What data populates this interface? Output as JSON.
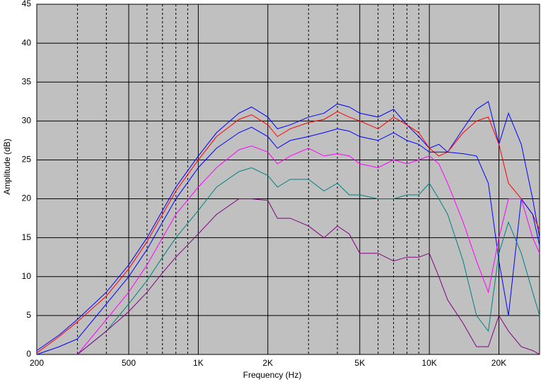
{
  "chart_data": {
    "type": "line",
    "xscale": "log",
    "grid": true,
    "xlabel": "Frequency (Hz)",
    "ylabel": "Amplitude (dB)",
    "xlim": [
      200,
      30000
    ],
    "ylim": [
      0,
      45
    ],
    "xticks": [
      200,
      500,
      {
        "value": 1000,
        "label": "1K"
      },
      {
        "value": 2000,
        "label": "2K"
      },
      {
        "value": 5000,
        "label": "5K"
      },
      {
        "value": 10000,
        "label": "10K"
      },
      {
        "value": 20000,
        "label": "20K"
      }
    ],
    "xminor": [
      300,
      400,
      600,
      700,
      800,
      900,
      3000,
      4000,
      6000,
      7000,
      8000,
      9000
    ],
    "yticks": [
      0,
      5,
      10,
      15,
      20,
      25,
      30,
      35,
      40,
      45
    ],
    "x": [
      200,
      250,
      300,
      400,
      500,
      600,
      700,
      800,
      1000,
      1200,
      1500,
      1700,
      2000,
      2200,
      2500,
      3000,
      3500,
      4000,
      4500,
      5000,
      6000,
      7000,
      8000,
      9000,
      10000,
      11000,
      12000,
      14000,
      16000,
      18000,
      20000,
      22000,
      25000,
      28000,
      30000
    ],
    "series": [
      {
        "color": "#0000ff",
        "values": [
          0.5,
          2.5,
          4.5,
          8,
          11.5,
          15,
          18.5,
          21.5,
          25.5,
          28.5,
          31,
          31.8,
          30.5,
          29,
          29.5,
          30.5,
          31,
          32.2,
          31.8,
          31,
          30.5,
          31.5,
          29.5,
          28,
          26.5,
          27,
          26,
          29,
          31.5,
          32.5,
          27,
          31,
          27,
          20,
          15
        ]
      },
      {
        "color": "#ff0000",
        "values": [
          0.2,
          2.3,
          4.2,
          7.5,
          11,
          14.5,
          18,
          21,
          25,
          28,
          30.2,
          30.8,
          29.5,
          28,
          29,
          29.8,
          30.2,
          31.2,
          30.5,
          30,
          29,
          30.5,
          29.5,
          28.5,
          26.5,
          25.5,
          26,
          28.5,
          30,
          30.5,
          27,
          22,
          20,
          18,
          16
        ]
      },
      {
        "color": "#0000ff",
        "values": [
          0,
          1,
          2,
          6.5,
          10,
          13.5,
          17,
          20,
          24,
          26.5,
          28.5,
          29.2,
          28,
          26.5,
          27.5,
          28,
          28.5,
          29,
          28.7,
          28,
          27.5,
          28.5,
          27.5,
          27,
          26,
          26,
          26,
          25.8,
          25.5,
          22,
          12,
          5,
          20,
          18,
          14
        ]
      },
      {
        "color": "#ff00ff",
        "values": [
          null,
          null,
          0,
          4.5,
          8,
          11.5,
          15,
          18,
          21.5,
          24,
          26.3,
          26.8,
          26,
          24.5,
          25.5,
          26.5,
          25.5,
          25.8,
          25.5,
          24.5,
          24,
          25,
          24.5,
          25,
          25.5,
          24.5,
          22,
          17,
          12,
          8,
          15,
          20,
          20,
          15,
          13
        ]
      },
      {
        "color": "#008080",
        "values": [
          null,
          null,
          0,
          3,
          6.5,
          9.5,
          12.5,
          15,
          18.5,
          21.5,
          23.5,
          24,
          23,
          21.5,
          22.5,
          22.5,
          21,
          22,
          20.5,
          20.5,
          20,
          20,
          20.5,
          20.5,
          22,
          20,
          18,
          12,
          5,
          3,
          13,
          17,
          13,
          8,
          5
        ]
      },
      {
        "color": "#800080",
        "values": [
          null,
          null,
          0,
          3,
          5.5,
          8,
          10.5,
          12.5,
          15.5,
          18,
          20,
          20,
          19.8,
          17.5,
          17.5,
          16.5,
          15,
          16.5,
          15.5,
          13,
          13,
          12,
          12.5,
          12.5,
          13,
          10,
          7,
          4,
          1,
          1,
          5,
          3,
          1,
          0.5,
          0
        ]
      }
    ]
  }
}
